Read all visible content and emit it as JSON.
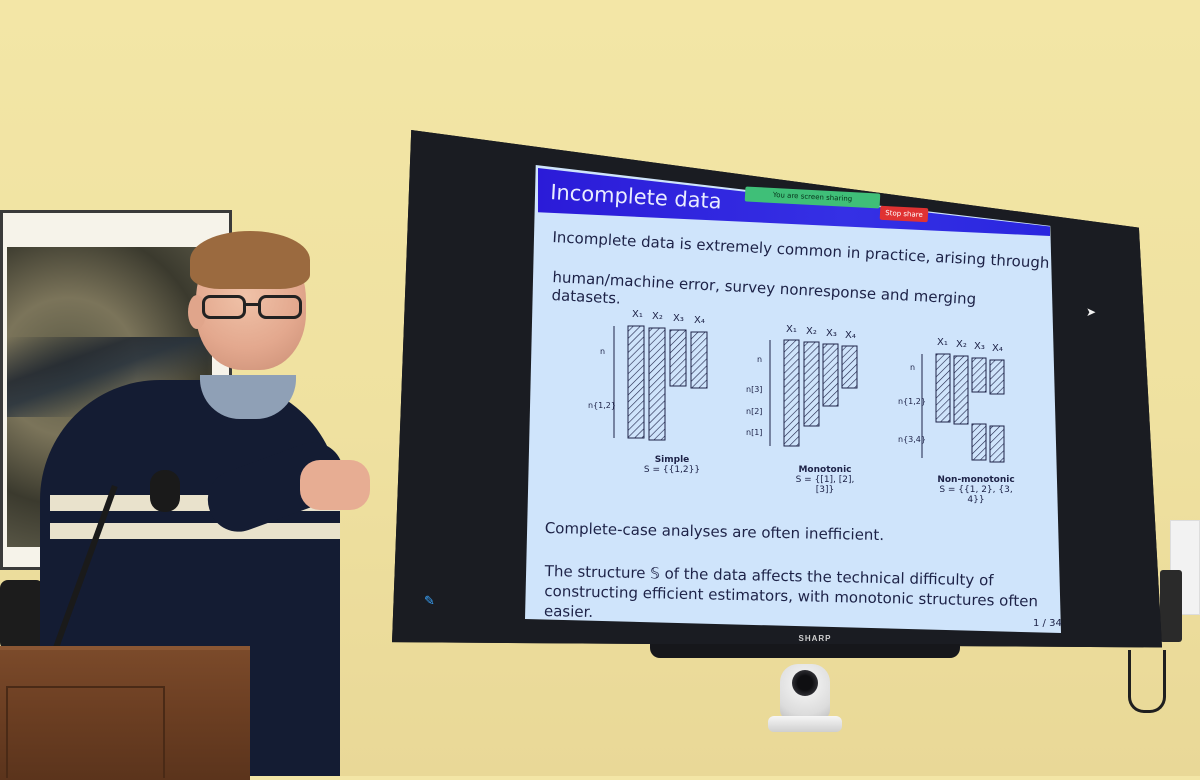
{
  "slide": {
    "title": "Incomplete data",
    "intro_line1": "Incomplete data is extremely common in practice, arising through",
    "intro_line2": "human/machine error, survey nonresponse and merging datasets.",
    "complete_case": "Complete-case analyses are often inefficient.",
    "structure_text": "The structure 𝕊 of the data affects the technical difficulty of constructing efficient estimators, with monotonic structures often easier.",
    "page": "1 / 34"
  },
  "screen_share": {
    "status": "You are screen sharing",
    "stop_label": "Stop share"
  },
  "diagrams": {
    "column_labels": [
      "X₁",
      "X₂",
      "X₃",
      "X₄"
    ],
    "simple": {
      "name": "Simple",
      "structure": "S = {{1,2}}",
      "row_labels": [
        "n",
        "n{1,2}"
      ]
    },
    "monotonic": {
      "name": "Monotonic",
      "structure": "S = {[1], [2], [3]}",
      "row_labels": [
        "n",
        "n[3]",
        "n[2]",
        "n[1]"
      ]
    },
    "nonmonotonic": {
      "name": "Non-monotonic",
      "structure": "S = {{1, 2}, {3, 4}}",
      "row_labels": [
        "n",
        "n{1,2}",
        "n{3,4}"
      ]
    }
  },
  "tv": {
    "brand": "SHARP"
  },
  "icons": {
    "pen": "pencil-icon",
    "cursor": "mouse-cursor-icon"
  },
  "colors": {
    "wall": "#f0e2a3",
    "slide_header": "#2f28e0",
    "slide_bg": "#cfe4fb",
    "share_bar": "#3fbf78",
    "stop_share": "#e03232"
  }
}
